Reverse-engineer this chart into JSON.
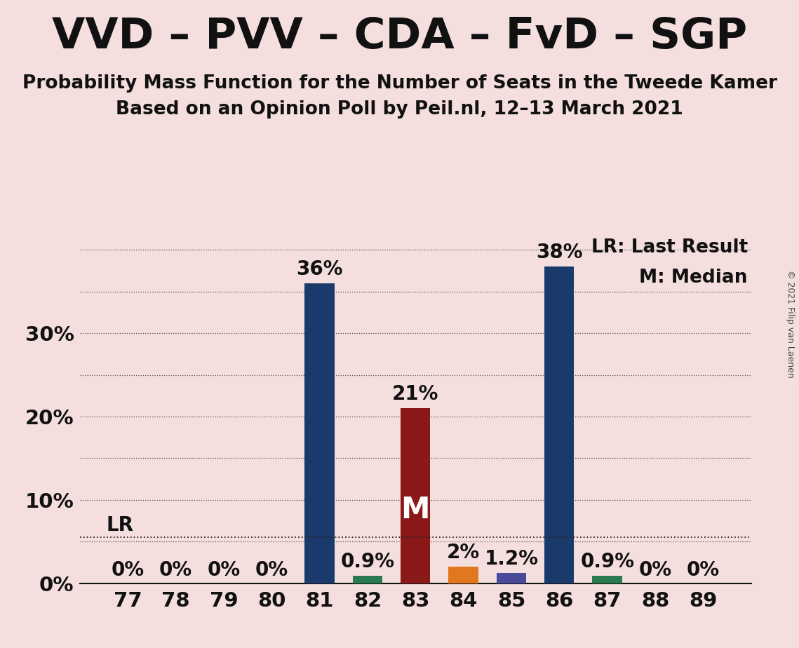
{
  "title": "VVD – PVV – CDA – FvD – SGP",
  "subtitle1": "Probability Mass Function for the Number of Seats in the Tweede Kamer",
  "subtitle2": "Based on an Opinion Poll by Peil.nl, 12–13 March 2021",
  "copyright": "© 2021 Filip van Laenen",
  "background_color": "#f5dede",
  "seats": [
    77,
    78,
    79,
    80,
    81,
    82,
    83,
    84,
    85,
    86,
    87,
    88,
    89
  ],
  "probabilities": [
    0,
    0,
    0,
    0,
    36,
    0.9,
    21,
    2,
    1.2,
    38,
    0.9,
    0,
    0
  ],
  "bar_colors": [
    "#1a3a6b",
    "#1a3a6b",
    "#1a3a6b",
    "#1a3a6b",
    "#1a3a6b",
    "#2a7a50",
    "#8b1818",
    "#e07820",
    "#4a4a9a",
    "#1a3a6b",
    "#2a7a50",
    "#1a3a6b",
    "#1a3a6b"
  ],
  "median_seat": 83,
  "lr_value": 5.5,
  "lr_label": "LR",
  "median_label": "M",
  "legend_text1": "LR: Last Result",
  "legend_text2": "M: Median",
  "yticks": [
    0,
    10,
    20,
    30
  ],
  "ytick_labels": [
    "0%",
    "10%",
    "20%",
    "30%"
  ],
  "ylim": [
    0,
    42
  ],
  "bar_width": 0.62,
  "title_fontsize": 44,
  "subtitle_fontsize": 19,
  "tick_fontsize": 21,
  "annot_fontsize": 20,
  "legend_fontsize": 19,
  "median_fontsize": 30,
  "lr_fontsize": 20,
  "copyright_fontsize": 9
}
